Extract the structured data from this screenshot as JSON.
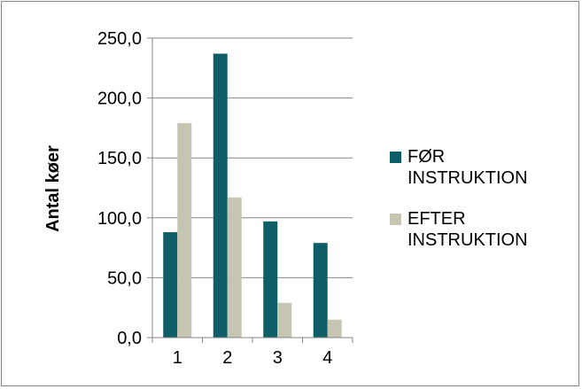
{
  "chart_data": {
    "type": "bar",
    "categories": [
      "1",
      "2",
      "3",
      "4"
    ],
    "series": [
      {
        "name": "FØR\nINSTRUKTION",
        "values": [
          88,
          237,
          97,
          79
        ],
        "color": "#0e5e68"
      },
      {
        "name": "EFTER\nINSTRUKTION",
        "values": [
          179,
          117,
          29,
          15
        ],
        "color": "#c6c5b2"
      }
    ],
    "ylabel": "Antal køer",
    "ylim": [
      0,
      250
    ],
    "yticks": [
      "0,0",
      "50,0",
      "100,0",
      "150,0",
      "200,0",
      "250,0"
    ],
    "grid": true,
    "legend": "right"
  }
}
